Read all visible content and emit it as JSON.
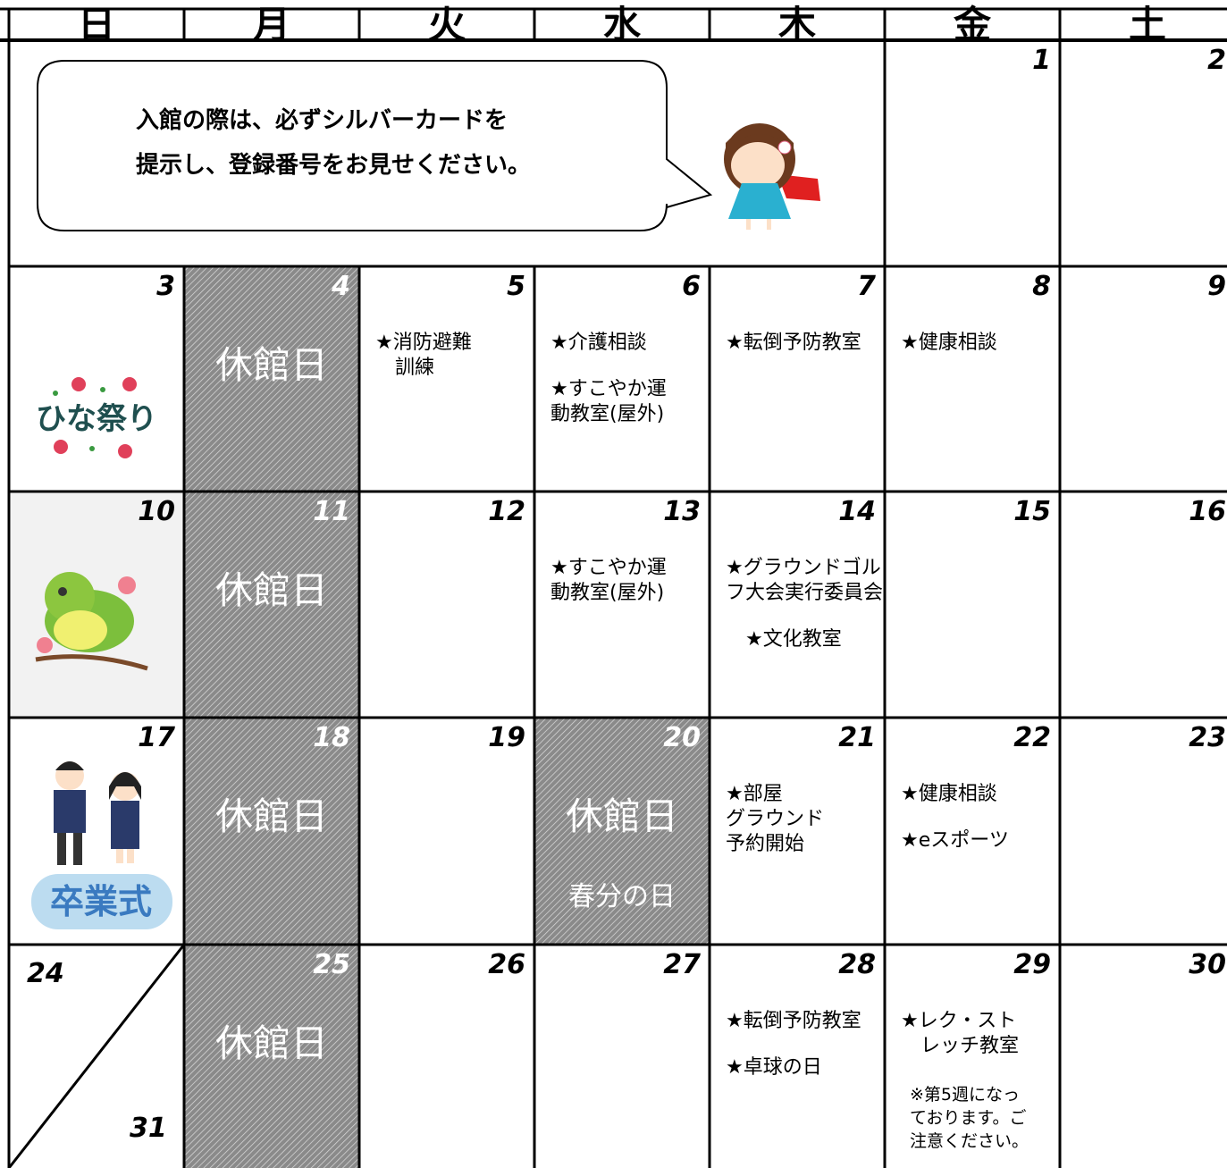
{
  "header": {
    "weekdays": [
      "日",
      "月",
      "火",
      "水",
      "木",
      "金",
      "土"
    ]
  },
  "notice": {
    "lines": [
      "入館の際は、必ずシルバーカードを",
      "提示し、登録番号をお見せください。"
    ]
  },
  "illustrations": {
    "hinamatsuri": "ひな祭り",
    "graduation": "卒業式"
  },
  "weeks": [
    {
      "days": [
        {
          "date": 1
        },
        {
          "date": 2
        }
      ]
    },
    {
      "days": [
        {
          "date": 3
        },
        {
          "date": 4,
          "closed": "休館日"
        },
        {
          "date": 5,
          "events": [
            [
              "★消防避難",
              "　訓練"
            ]
          ]
        },
        {
          "date": 6,
          "events": [
            [
              "★介護相談"
            ],
            [
              "★すこやか運",
              "動教室(屋外)"
            ]
          ]
        },
        {
          "date": 7,
          "events": [
            [
              "★転倒予防教室"
            ]
          ]
        },
        {
          "date": 8,
          "events": [
            [
              "★健康相談"
            ]
          ]
        },
        {
          "date": 9
        }
      ]
    },
    {
      "days": [
        {
          "date": 10
        },
        {
          "date": 11,
          "closed": "休館日"
        },
        {
          "date": 12
        },
        {
          "date": 13,
          "events": [
            [
              "★すこやか運",
              "動教室(屋外)"
            ]
          ]
        },
        {
          "date": 14,
          "events": [
            [
              "★グラウンドゴル",
              "フ大会実行委員会"
            ],
            [
              "　★文化教室"
            ]
          ]
        },
        {
          "date": 15
        },
        {
          "date": 16
        }
      ]
    },
    {
      "days": [
        {
          "date": 17
        },
        {
          "date": 18,
          "closed": "休館日"
        },
        {
          "date": 19
        },
        {
          "date": 20,
          "closed": "休館日",
          "holiday": "春分の日"
        },
        {
          "date": 21,
          "events": [
            [
              "★部屋",
              "グラウンド",
              "予約開始"
            ]
          ]
        },
        {
          "date": 22,
          "events": [
            [
              "★健康相談"
            ],
            [
              "★eスポーツ"
            ]
          ]
        },
        {
          "date": 23
        }
      ]
    },
    {
      "days": [
        {
          "date": 24,
          "date_2": 31
        },
        {
          "date": 25,
          "closed": "休館日"
        },
        {
          "date": 26
        },
        {
          "date": 27
        },
        {
          "date": 28,
          "events": [
            [
              "★転倒予防教室"
            ],
            [
              "★卓球の日"
            ]
          ]
        },
        {
          "date": 29,
          "events": [
            [
              "★レク・スト",
              "　レッチ教室"
            ]
          ],
          "note": [
            "※第5週になっ",
            "ております。ご",
            "注意ください。"
          ]
        },
        {
          "date": 30
        }
      ]
    }
  ]
}
